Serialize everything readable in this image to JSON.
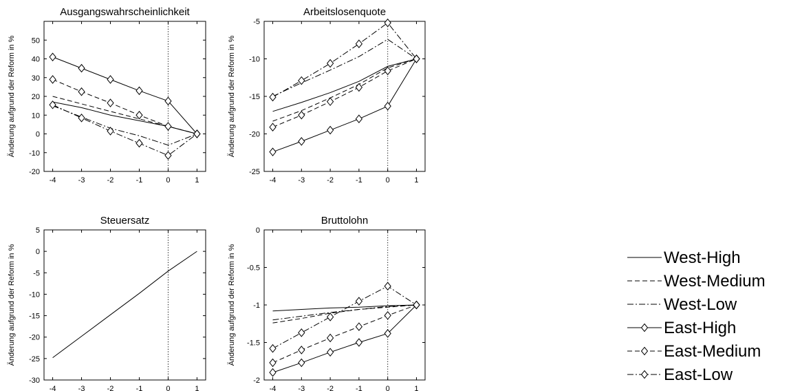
{
  "chart_data": [
    {
      "type": "line",
      "title": "Ausgangswahrscheinlichkeit",
      "xlabel": "",
      "ylabel": "Änderung aufgrund der Reform in %",
      "x": [
        -4,
        -3,
        -2,
        -1,
        0,
        1
      ],
      "xlim": [
        -4.3,
        1.3
      ],
      "ylim": [
        -20,
        60
      ],
      "xticks": [
        -4,
        -3,
        -2,
        -1,
        0,
        1
      ],
      "yticks": [
        -20,
        -10,
        0,
        10,
        20,
        30,
        40,
        50
      ],
      "vline_x": 0,
      "series": [
        {
          "name": "West-High",
          "values": [
            17,
            14,
            10,
            7,
            4,
            0
          ]
        },
        {
          "name": "West-Medium",
          "values": [
            20,
            16,
            12,
            8,
            4,
            0
          ]
        },
        {
          "name": "West-Low",
          "values": [
            15,
            9,
            3,
            -1,
            -6,
            0
          ]
        },
        {
          "name": "East-High",
          "values": [
            41,
            35,
            29,
            23,
            17.5,
            0
          ]
        },
        {
          "name": "East-Medium",
          "values": [
            29,
            22.5,
            16.5,
            10,
            4,
            0
          ]
        },
        {
          "name": "East-Low",
          "values": [
            15.5,
            8.5,
            1.5,
            -5,
            -11.5,
            0
          ]
        }
      ]
    },
    {
      "type": "line",
      "title": "Arbeitslosenquote",
      "xlabel": "",
      "ylabel": "Änderung aufgrund der Reform in %",
      "x": [
        -4,
        -3,
        -2,
        -1,
        0,
        1
      ],
      "xlim": [
        -4.3,
        1.3
      ],
      "ylim": [
        -25,
        -5
      ],
      "xticks": [
        -4,
        -3,
        -2,
        -1,
        0,
        1
      ],
      "yticks": [
        -25,
        -20,
        -15,
        -10,
        -5
      ],
      "vline_x": 0,
      "series": [
        {
          "name": "West-High",
          "values": [
            -17,
            -15.8,
            -14.5,
            -13,
            -11,
            -10
          ]
        },
        {
          "name": "West-Medium",
          "values": [
            -18.3,
            -16.9,
            -15.2,
            -13.4,
            -11.2,
            -10
          ]
        },
        {
          "name": "West-Low",
          "values": [
            -15,
            -13.2,
            -11.5,
            -9.7,
            -7.4,
            -10
          ]
        },
        {
          "name": "East-High",
          "values": [
            -22.4,
            -21,
            -19.5,
            -18,
            -16.3,
            -10
          ]
        },
        {
          "name": "East-Medium",
          "values": [
            -19.1,
            -17.5,
            -15.7,
            -13.8,
            -11.6,
            -10
          ]
        },
        {
          "name": "East-Low",
          "values": [
            -15.1,
            -12.9,
            -10.6,
            -8,
            -5.2,
            -10
          ]
        }
      ]
    },
    {
      "type": "line",
      "title": "Steuersatz",
      "xlabel": "",
      "ylabel": "Änderung aufgrund der Reform in %",
      "x": [
        -4,
        -3,
        -2,
        -1,
        0,
        1
      ],
      "xlim": [
        -4.3,
        1.3
      ],
      "ylim": [
        -30,
        5
      ],
      "xticks": [
        -4,
        -3,
        -2,
        -1,
        0,
        1
      ],
      "yticks": [
        -30,
        -25,
        -20,
        -15,
        -10,
        -5,
        0,
        5
      ],
      "vline_x": 0,
      "series": [
        {
          "name": "West-High",
          "values": [
            -24.8,
            -19.8,
            -14.8,
            -9.8,
            -4.6,
            0
          ]
        }
      ]
    },
    {
      "type": "line",
      "title": "Bruttolohn",
      "xlabel": "",
      "ylabel": "Änderung aufgrund der Reform in %",
      "x": [
        -4,
        -3,
        -2,
        -1,
        0,
        1
      ],
      "xlim": [
        -4.3,
        1.3
      ],
      "ylim": [
        -2,
        0
      ],
      "xticks": [
        -4,
        -3,
        -2,
        -1,
        0,
        1
      ],
      "yticks": [
        -2,
        -1.5,
        -1,
        -0.5,
        0
      ],
      "vline_x": 0,
      "series": [
        {
          "name": "West-High",
          "values": [
            -1.08,
            -1.06,
            -1.04,
            -1.03,
            -1.01,
            -1
          ]
        },
        {
          "name": "West-Medium",
          "values": [
            -1.24,
            -1.18,
            -1.11,
            -1.06,
            -1.03,
            -1
          ]
        },
        {
          "name": "West-Low",
          "values": [
            -1.2,
            -1.15,
            -1.1,
            -1.06,
            -1.02,
            -1
          ]
        },
        {
          "name": "East-High",
          "values": [
            -1.9,
            -1.77,
            -1.63,
            -1.5,
            -1.38,
            -1
          ]
        },
        {
          "name": "East-Medium",
          "values": [
            -1.77,
            -1.6,
            -1.44,
            -1.29,
            -1.14,
            -1
          ]
        },
        {
          "name": "East-Low",
          "values": [
            -1.58,
            -1.37,
            -1.16,
            -0.95,
            -0.75,
            -1
          ]
        }
      ]
    }
  ],
  "legend": {
    "placement": "right",
    "items": [
      {
        "label": "West-High",
        "dash": "solid",
        "marker": false
      },
      {
        "label": "West-Medium",
        "dash": "dashed",
        "marker": false
      },
      {
        "label": "West-Low",
        "dash": "dash-dot",
        "marker": false
      },
      {
        "label": "East-High",
        "dash": "solid",
        "marker": true
      },
      {
        "label": "East-Medium",
        "dash": "dashed",
        "marker": true
      },
      {
        "label": "East-Low",
        "dash": "dash-dot",
        "marker": true
      }
    ]
  },
  "colors": {
    "line": "#000000",
    "background": "#ffffff",
    "marker_fill": "#ffffff"
  }
}
